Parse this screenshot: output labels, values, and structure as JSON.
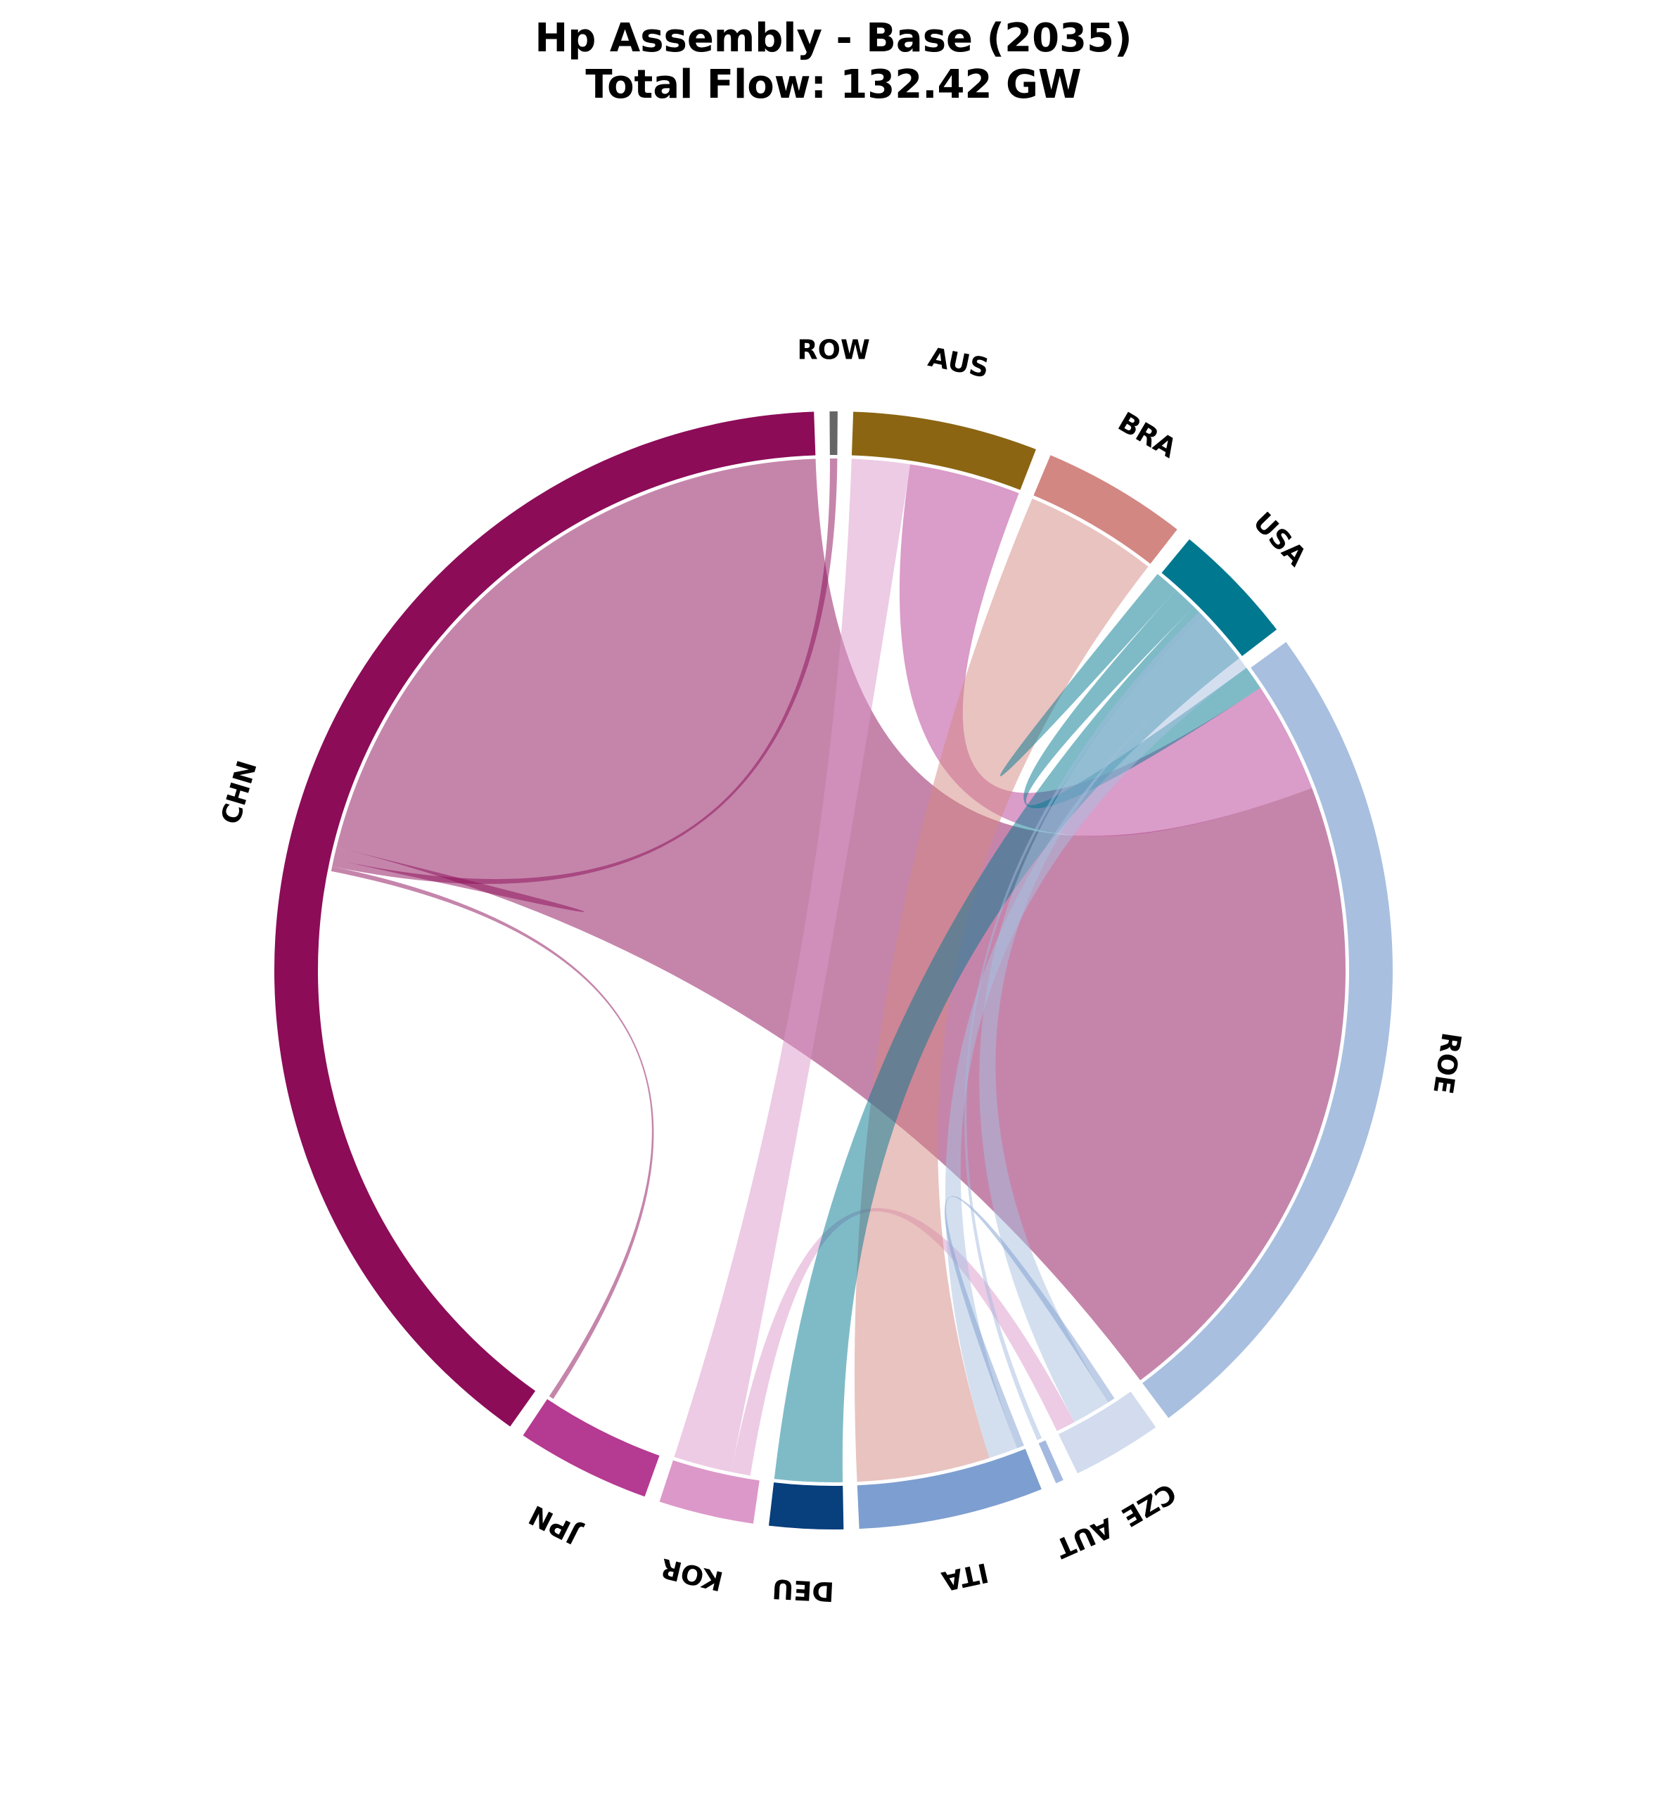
{
  "chart_data": {
    "type": "chord",
    "title": "Hp Assembly - Base (2035)",
    "subtitle": "Total Flow: 132.42 GW",
    "unit": "GW",
    "total_flow": 132.42,
    "nodes": [
      {
        "id": "CHN",
        "label": "CHN",
        "color": "#8c0c58",
        "value": 52.0
      },
      {
        "id": "JPN",
        "label": "JPN",
        "color": "#b53a92",
        "value": 5.1
      },
      {
        "id": "KOR",
        "label": "KOR",
        "color": "#dc98c9",
        "value": 3.6
      },
      {
        "id": "DEU",
        "label": "DEU",
        "color": "#083f7d",
        "value": 2.8
      },
      {
        "id": "ITA",
        "label": "ITA",
        "color": "#7d9ed0",
        "value": 7.0
      },
      {
        "id": "AUT",
        "label": "AUT",
        "color": "#a4b9df",
        "value": 0.3
      },
      {
        "id": "CZE",
        "label": "CZE",
        "color": "#d2dcee",
        "value": 3.4
      },
      {
        "id": "ROE",
        "label": "ROE",
        "color": "#a8bfe0",
        "value": 32.5
      },
      {
        "id": "USA",
        "label": "USA",
        "color": "#007890",
        "value": 4.7
      },
      {
        "id": "BRA",
        "label": "BRA",
        "color": "#d38782",
        "value": 5.5
      },
      {
        "id": "AUS",
        "label": "AUS",
        "color": "#8b6512",
        "value": 7.0
      },
      {
        "id": "ROW",
        "label": "ROW",
        "color": "#666666",
        "value": 0.3
      }
    ],
    "ribbons": [
      {
        "a": "CHN",
        "b": "ROE",
        "va": 27.0,
        "vb": 27.0,
        "color": "#8c0c58"
      },
      {
        "a": "CHN",
        "b": "CHN",
        "va": 0.25,
        "vb": 0.25,
        "color": "#8c0c58"
      },
      {
        "a": "CHN",
        "b": "ROW",
        "va": 0.3,
        "vb": 0.3,
        "color": "#8c0c58"
      },
      {
        "a": "CHN",
        "b": "JPN",
        "va": 0.2,
        "vb": 0.2,
        "color": "#8c0c58"
      },
      {
        "a": "ROE",
        "b": "AUS",
        "va": 4.6,
        "vb": 4.6,
        "color": "#b53a92"
      },
      {
        "a": "KOR",
        "b": "AUS",
        "va": 2.4,
        "vb": 2.4,
        "color": "#dc98c9"
      },
      {
        "a": "KOR",
        "b": "CZE",
        "va": 0.8,
        "vb": 0.8,
        "color": "#dc98c9"
      },
      {
        "a": "ITA",
        "b": "BRA",
        "va": 5.5,
        "vb": 5.5,
        "color": "#d38782"
      },
      {
        "a": "DEU",
        "b": "USA",
        "va": 2.8,
        "vb": 2.8,
        "color": "#007890"
      },
      {
        "a": "USA",
        "b": "ROE",
        "va": 1.0,
        "vb": 1.0,
        "color": "#007890"
      },
      {
        "a": "USA",
        "b": "USA",
        "va": 0.5,
        "vb": 0.5,
        "color": "#007890"
      },
      {
        "a": "ITA",
        "b": "ROE",
        "va": 1.2,
        "vb": 1.2,
        "color": "#a8bfe0"
      },
      {
        "a": "CZE",
        "b": "ROE",
        "va": 1.6,
        "vb": 1.6,
        "color": "#a8bfe0"
      },
      {
        "a": "ITA",
        "b": "CZE",
        "va": 0.3,
        "vb": 0.3,
        "color": "#7d9ed0"
      },
      {
        "a": "AUT",
        "b": "ROE",
        "va": 0.2,
        "vb": 0.2,
        "color": "#a4b9df"
      }
    ]
  }
}
